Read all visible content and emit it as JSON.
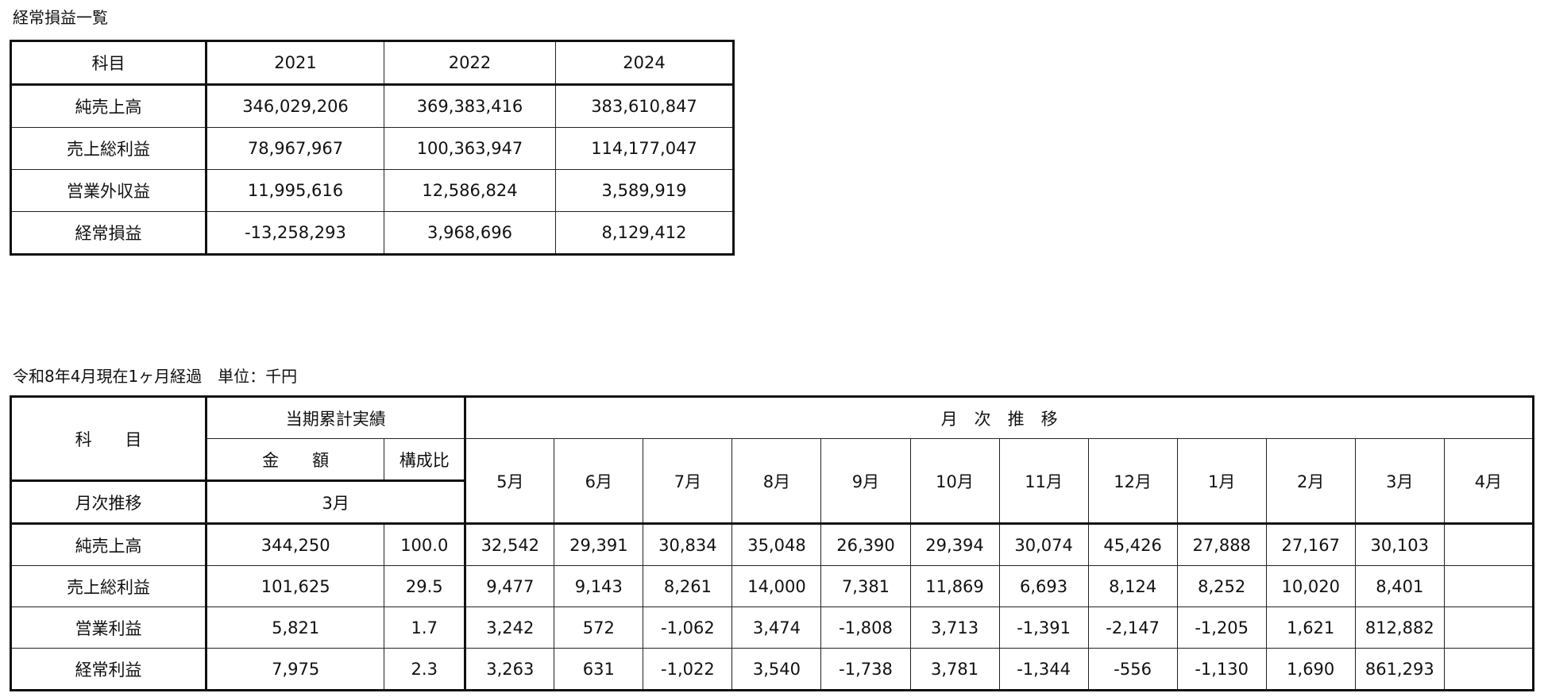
{
  "summary": {
    "title": "経常損益一覧",
    "headers": [
      "科目",
      "2021",
      "2022",
      "2024"
    ],
    "rows": [
      [
        "純売上高",
        "346,029,206",
        "369,383,416",
        "383,610,847"
      ],
      [
        "売上総利益",
        "78,967,967",
        "100,363,947",
        "114,177,047"
      ],
      [
        "営業外収益",
        "11,995,616",
        "12,586,824",
        "3,589,919"
      ],
      [
        "経常損益",
        "-13,258,293",
        "3,968,696",
        "8,129,412"
      ]
    ]
  },
  "monthly": {
    "title": "令和8年4月現在1ヶ月経過　単位：千円",
    "subject_header": "科　　目",
    "cumulative_header": "当期累計実績",
    "amount_header": "金　　額",
    "ratio_header": "構成比",
    "trend_header": "月　次　推　移",
    "month_trend_label": "月次推移",
    "current_month": "3月",
    "months": [
      "5月",
      "6月",
      "7月",
      "8月",
      "9月",
      "10月",
      "11月",
      "12月",
      "1月",
      "2月",
      "3月",
      "4月"
    ],
    "rows": [
      {
        "label": "純売上高",
        "amount": "344,250",
        "ratio": "100.0",
        "values": [
          "32,542",
          "29,391",
          "30,834",
          "35,048",
          "26,390",
          "29,394",
          "30,074",
          "45,426",
          "27,888",
          "27,167",
          "30,103",
          ""
        ]
      },
      {
        "label": "売上総利益",
        "amount": "101,625",
        "ratio": "29.5",
        "values": [
          "9,477",
          "9,143",
          "8,261",
          "14,000",
          "7,381",
          "11,869",
          "6,693",
          "8,124",
          "8,252",
          "10,020",
          "8,401",
          ""
        ]
      },
      {
        "label": "営業利益",
        "amount": "5,821",
        "ratio": "1.7",
        "values": [
          "3,242",
          "572",
          "-1,062",
          "3,474",
          "-1,808",
          "3,713",
          "-1,391",
          "-2,147",
          "-1,205",
          "1,621",
          "812,882",
          ""
        ]
      },
      {
        "label": "経常利益",
        "amount": "7,975",
        "ratio": "2.3",
        "values": [
          "3,263",
          "631",
          "-1,022",
          "3,540",
          "-1,738",
          "3,781",
          "-1,344",
          "-556",
          "-1,130",
          "1,690",
          "861,293",
          ""
        ]
      }
    ]
  }
}
